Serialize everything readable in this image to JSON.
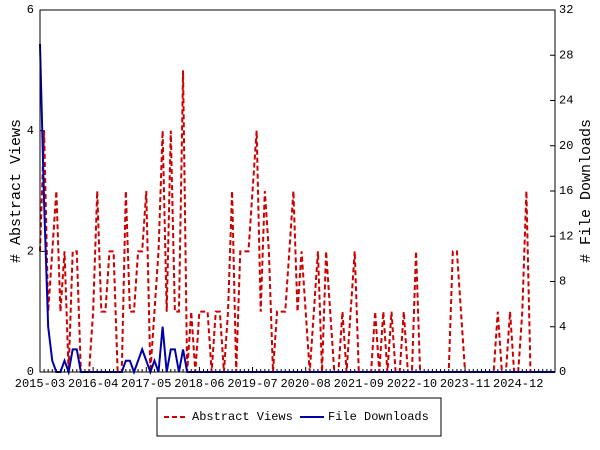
{
  "chart_data": {
    "type": "line",
    "y_label": "# Abstract Views",
    "y2_label": "# File Downloads",
    "categories": [
      "2015-03",
      null,
      null,
      null,
      null,
      null,
      null,
      null,
      null,
      null,
      null,
      null,
      null,
      "2016-04",
      null,
      null,
      null,
      null,
      null,
      null,
      null,
      null,
      null,
      null,
      null,
      null,
      "2017-05",
      null,
      null,
      null,
      null,
      null,
      null,
      null,
      null,
      null,
      null,
      null,
      null,
      "2018-06",
      null,
      null,
      null,
      null,
      null,
      null,
      null,
      null,
      null,
      null,
      null,
      null,
      "2019-07",
      null,
      null,
      null,
      null,
      null,
      null,
      null,
      null,
      null,
      null,
      null,
      null,
      "2020-08",
      null,
      null,
      null,
      null,
      null,
      null,
      null,
      null,
      null,
      null,
      null,
      null,
      "2021-09",
      null,
      null,
      null,
      null,
      null,
      null,
      null,
      null,
      null,
      null,
      null,
      null,
      "2022-10",
      null,
      null,
      null,
      null,
      null,
      null,
      null,
      null,
      null,
      null,
      null,
      null,
      "2023-11",
      null,
      null,
      null,
      null,
      null,
      null,
      null,
      null,
      null,
      null,
      null,
      null,
      "2024-12",
      null,
      null,
      null,
      null,
      null,
      null,
      null,
      null,
      null
    ],
    "series": [
      {
        "name": "Abstract Views",
        "color": "#cc0000",
        "dashed": true,
        "values": [
          2,
          4,
          1,
          2,
          3,
          1,
          2,
          0,
          2,
          2,
          0,
          0,
          0,
          1,
          3,
          1,
          1,
          2,
          2,
          0,
          0,
          3,
          1,
          1,
          2,
          2,
          3,
          0,
          1,
          2,
          4,
          1,
          4,
          1,
          1,
          5,
          0,
          1,
          0,
          1,
          1,
          1,
          0,
          1,
          1,
          0,
          1,
          3,
          0,
          2,
          2,
          2,
          3,
          4,
          1,
          3,
          2,
          0,
          1,
          1,
          1,
          2,
          3,
          1,
          2,
          1,
          0,
          1,
          2,
          0,
          2,
          1,
          0,
          0,
          1,
          0,
          1,
          2,
          0,
          0,
          0,
          0,
          1,
          0,
          1,
          0,
          1,
          0,
          0,
          1,
          0,
          0,
          2,
          0,
          0,
          0,
          0,
          0,
          0,
          0,
          0,
          2,
          2,
          1,
          0,
          0,
          0,
          0,
          0,
          0,
          0,
          0,
          1,
          0,
          0,
          1,
          0,
          0,
          1,
          3,
          0,
          0,
          0,
          0,
          0,
          0,
          0
        ]
      },
      {
        "name": "File Downloads",
        "color": "#0000aa",
        "axis": "y2",
        "values": [
          29,
          15,
          4,
          1,
          0,
          0,
          1,
          0,
          2,
          2,
          0,
          0,
          0,
          0,
          0,
          0,
          0,
          0,
          0,
          0,
          0,
          1,
          1,
          0,
          1,
          2,
          1,
          0,
          1,
          0,
          4,
          0,
          2,
          2,
          0,
          2,
          0,
          0,
          0,
          0,
          0,
          0,
          0,
          0,
          0,
          0,
          0,
          0,
          0,
          0,
          0,
          0,
          0,
          0,
          0,
          0,
          0,
          0,
          0,
          0,
          0,
          0,
          0,
          0,
          0,
          0,
          0,
          0,
          0,
          0,
          0,
          0,
          0,
          0,
          0,
          0,
          0,
          0,
          0,
          0,
          0,
          0,
          0,
          0,
          0,
          0,
          0,
          0,
          0,
          0,
          0,
          0,
          0,
          0,
          0,
          0,
          0,
          0,
          0,
          0,
          0,
          0,
          0,
          0,
          0,
          0,
          0,
          0,
          0,
          0,
          0,
          0,
          0,
          0,
          0,
          0,
          0,
          0,
          0,
          0,
          0,
          0,
          0,
          0,
          0,
          0,
          0
        ]
      }
    ],
    "ylim": [
      0,
      6
    ],
    "yticks": [
      0,
      2,
      4,
      6
    ],
    "y2lim": [
      0,
      32
    ],
    "y2ticks": [
      0,
      4,
      8,
      12,
      16,
      20,
      24,
      28,
      32
    ],
    "legend": "bottom"
  }
}
